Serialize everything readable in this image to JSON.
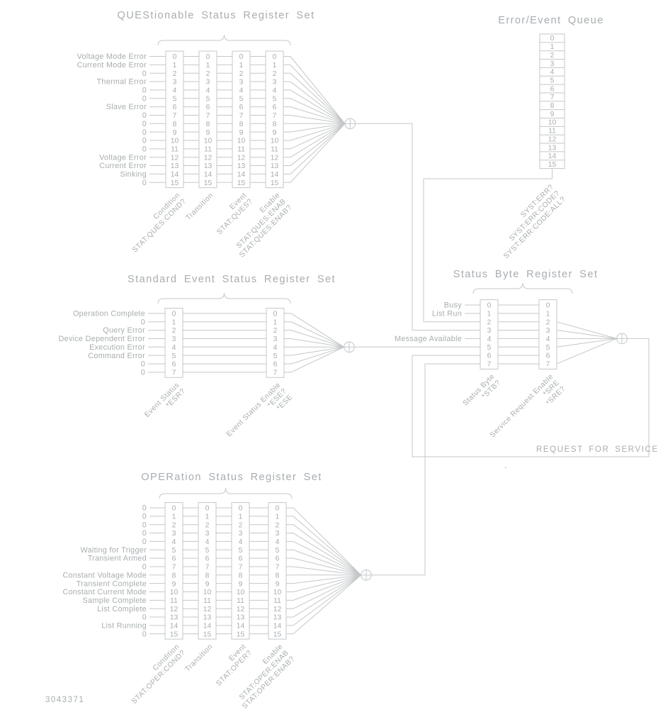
{
  "page": {
    "part_number": "3043371",
    "stray_dot": "."
  },
  "colors": {
    "background": "#ffffff",
    "ink": "#a8adb0",
    "line": "#c4c7c9"
  },
  "register_sets": [
    {
      "id": "questionable",
      "title": "QUEStionable Status Register Set",
      "bit_numbers": [
        "0",
        "1",
        "2",
        "3",
        "4",
        "5",
        "6",
        "7",
        "8",
        "9",
        "10",
        "11",
        "12",
        "13",
        "14",
        "15"
      ],
      "bit_labels": [
        "Voltage Mode Error",
        "Current Mode Error",
        "0",
        "Thermal Error",
        "0",
        "0",
        "Slave Error",
        "0",
        "0",
        "0",
        "0",
        "0",
        "Voltage Error",
        "Current Error",
        "Sinking",
        "0"
      ],
      "columns": [
        {
          "labels": [
            "Condition",
            "STAT:QUES:COND?"
          ]
        },
        {
          "labels": [
            "Transition"
          ]
        },
        {
          "labels": [
            "Event",
            "STAT:QUES?"
          ]
        },
        {
          "labels": [
            "Enable",
            "STAT:QUES:ENAB",
            "STAT:QUES:ENAB?"
          ]
        }
      ]
    },
    {
      "id": "standard_event",
      "title": "Standard Event Status Register Set",
      "bit_numbers": [
        "0",
        "1",
        "2",
        "3",
        "4",
        "5",
        "6",
        "7"
      ],
      "bit_labels": [
        "Operation Complete",
        "0",
        "Query Error",
        "Device Dependent Error",
        "Execution Error",
        "Command Error",
        "0",
        "0"
      ],
      "columns": [
        {
          "labels": [
            "Event Status",
            "*ESR?"
          ]
        },
        {
          "labels": [
            "Event Status Enable",
            "*ESE?",
            "*ESE"
          ]
        }
      ]
    },
    {
      "id": "operation",
      "title": "OPERation Status Register Set",
      "bit_numbers": [
        "0",
        "1",
        "2",
        "3",
        "4",
        "5",
        "6",
        "7",
        "8",
        "9",
        "10",
        "11",
        "12",
        "13",
        "14",
        "15"
      ],
      "bit_labels": [
        "0",
        "0",
        "0",
        "0",
        "0",
        "Waiting for Trigger",
        "Transient Armed",
        "0",
        "Constant Voltage Mode",
        "Transient Complete",
        "Constant Current Mode",
        "Sample Complete",
        "List Complete",
        "0",
        "List Running",
        "0"
      ],
      "columns": [
        {
          "labels": [
            "Condition",
            "STAT:OPER:COND?"
          ]
        },
        {
          "labels": [
            "Transition"
          ]
        },
        {
          "labels": [
            "Event",
            "STAT:OPER?"
          ]
        },
        {
          "labels": [
            "Enable",
            "STAT:OPER:ENAB",
            "STAT:OPER:ENAB?"
          ]
        }
      ]
    },
    {
      "id": "status_byte",
      "title": "Status Byte Register Set",
      "bit_numbers": [
        "0",
        "1",
        "2",
        "3",
        "4",
        "5",
        "6",
        "7"
      ],
      "bit_labels": [
        "Busy",
        "List Run",
        "",
        "",
        "Message Available",
        "",
        "",
        ""
      ],
      "columns": [
        {
          "labels": [
            "Status Byte",
            "*STB?"
          ]
        },
        {
          "labels": [
            "Service Request Enable",
            "*SRE",
            "*SRE?"
          ]
        }
      ]
    }
  ],
  "error_queue": {
    "title": "Error/Event Queue",
    "slot_numbers": [
      "0",
      "1",
      "2",
      "3",
      "4",
      "5",
      "6",
      "7",
      "8",
      "9",
      "10",
      "11",
      "12",
      "13",
      "14",
      "15"
    ],
    "commands": [
      "SYST:ERR?",
      "SYST:ERR:CODE?",
      "SYST:ERR:CODE:ALL?"
    ]
  },
  "annotations": {
    "request_for_service": "REQUEST FOR SERVICE"
  }
}
